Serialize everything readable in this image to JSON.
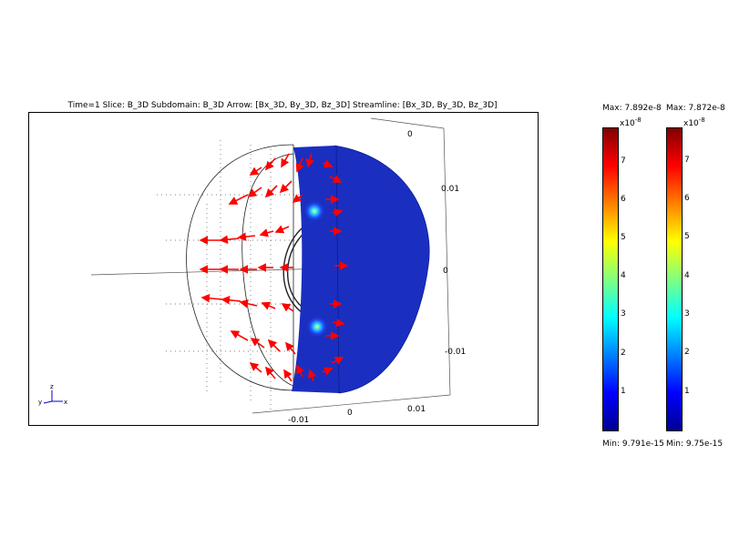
{
  "chart_data": {
    "type": "other",
    "description_type": "3d-slice-arrow-streamline",
    "title": "Time=1    Slice: B_3D    Subdomain: B_3D    Arrow: [Bx_3D, By_3D, Bz_3D]    Streamline: [Bx_3D, By_3D, Bz_3D]",
    "axis_ticks": {
      "vertical": [
        "0.01",
        "0",
        "-0.01"
      ],
      "depth_top": [
        "0"
      ],
      "horizontal": [
        "-0.01",
        "0",
        "0.01"
      ]
    },
    "axis_triad": {
      "z": "z",
      "y": "y",
      "x": "x"
    },
    "colormap": "jet",
    "arrow_color": "#ff0000",
    "slice_color": "#1a2fc0",
    "colorbars": [
      {
        "max_label": "Max: 7.892e-8",
        "min_label": "Min: 9.791e-15",
        "exponent_base": "x10",
        "exponent": "-8",
        "ticks": [
          "7",
          "6",
          "5",
          "4",
          "3",
          "2",
          "1"
        ],
        "vmin": 0,
        "vmax": 7.892
      },
      {
        "max_label": "Max: 7.872e-8",
        "min_label": "Min: 9.75e-15",
        "exponent_base": "x10",
        "exponent": "-8",
        "ticks": [
          "7",
          "6",
          "5",
          "4",
          "3",
          "2",
          "1"
        ],
        "vmin": 0,
        "vmax": 7.872
      }
    ]
  }
}
